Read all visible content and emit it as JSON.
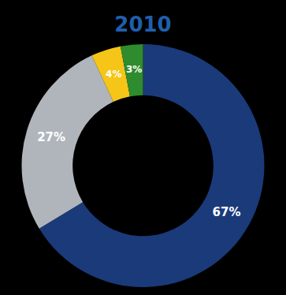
{
  "chart_data": {
    "type": "pie",
    "title": "2010",
    "categories": null,
    "values": [
      67,
      27,
      4,
      3
    ],
    "value_labels": [
      "67%",
      "27%",
      "4%",
      "3%"
    ],
    "colors": [
      "#1a3a7a",
      "#b0b5bc",
      "#f5c518",
      "#2e8b2e"
    ],
    "data_labels": true
  }
}
